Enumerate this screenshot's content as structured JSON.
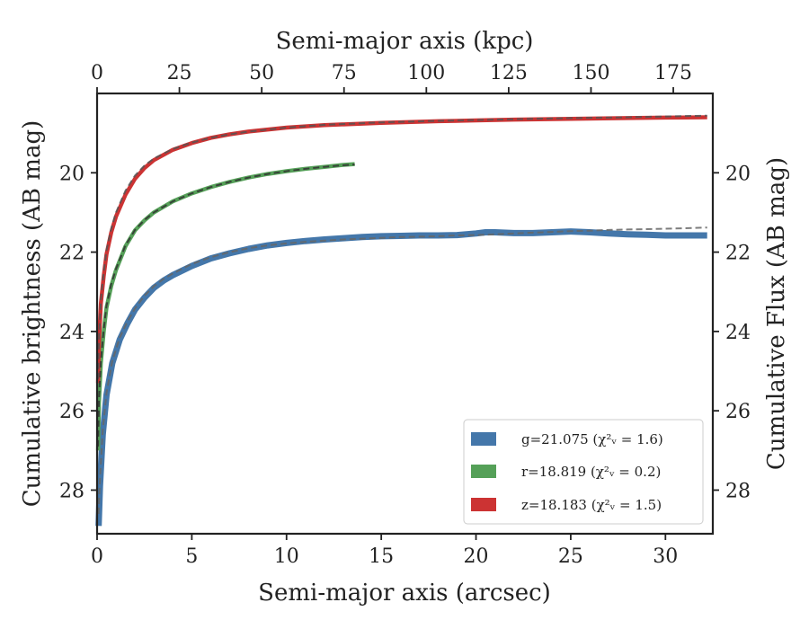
{
  "chart_data": {
    "type": "line",
    "xlabel": "Semi-major axis (arcsec)",
    "ylabel": "Cumulative brightness (AB mag)",
    "x2label": "Semi-major axis (kpc)",
    "y2label": "Cumulative Flux (AB mag)",
    "xlim": [
      0,
      32.5
    ],
    "ylim": [
      29.1,
      18.0
    ],
    "x2lim": [
      0,
      187
    ],
    "y_inverted": true,
    "xticks": [
      0,
      5,
      10,
      15,
      20,
      25,
      30
    ],
    "yticks": [
      20,
      22,
      24,
      26,
      28
    ],
    "x2ticks": [
      0,
      25,
      50,
      75,
      100,
      125,
      150,
      175
    ],
    "grid": false,
    "legend_position": "lower-right",
    "series": [
      {
        "name": "g=21.075 (χ²ᵥ = 1.6)",
        "color": "#4477aa",
        "fit_color": "#666666",
        "x": [
          0.08,
          0.15,
          0.3,
          0.5,
          0.8,
          1.2,
          1.6,
          2.0,
          2.5,
          3.0,
          3.5,
          4.0,
          5.0,
          6.0,
          7.0,
          8.0,
          9.0,
          10.0,
          11.0,
          12.0,
          13.0,
          14.0,
          15.0,
          16.0,
          17.0,
          18.0,
          19.0,
          20.0,
          20.5,
          21.0,
          22.0,
          23.0,
          24.0,
          25.0,
          26.0,
          27.0,
          28.0,
          29.0,
          30.0,
          31.0,
          32.2
        ],
        "y": [
          28.9,
          27.9,
          26.6,
          25.6,
          24.8,
          24.2,
          23.8,
          23.45,
          23.15,
          22.9,
          22.72,
          22.58,
          22.35,
          22.16,
          22.03,
          21.92,
          21.83,
          21.77,
          21.72,
          21.68,
          21.65,
          21.62,
          21.6,
          21.59,
          21.58,
          21.58,
          21.57,
          21.53,
          21.5,
          21.5,
          21.52,
          21.52,
          21.5,
          21.48,
          21.5,
          21.53,
          21.55,
          21.56,
          21.58,
          21.58,
          21.58
        ],
        "fit_y": [
          28.6,
          27.7,
          26.5,
          25.55,
          24.75,
          24.15,
          23.75,
          23.42,
          23.1,
          22.86,
          22.68,
          22.54,
          22.3,
          22.13,
          22.0,
          21.9,
          21.83,
          21.78,
          21.74,
          21.71,
          21.68,
          21.66,
          21.64,
          21.62,
          21.61,
          21.6,
          21.58,
          21.57,
          21.56,
          21.55,
          21.53,
          21.51,
          21.49,
          21.47,
          21.46,
          21.44,
          21.43,
          21.42,
          21.41,
          21.4,
          21.38
        ]
      },
      {
        "name": "r=18.819 (χ²ᵥ = 0.2)",
        "color": "#55a058",
        "fit_color": "#333333",
        "x": [
          0.05,
          0.1,
          0.2,
          0.35,
          0.5,
          0.75,
          1.0,
          1.5,
          2.0,
          2.5,
          3.0,
          4.0,
          5.0,
          6.0,
          7.0,
          8.0,
          9.0,
          10.0,
          11.0,
          12.0,
          13.0,
          13.6
        ],
        "y": [
          27.0,
          25.8,
          24.8,
          24.0,
          23.4,
          22.85,
          22.45,
          21.85,
          21.45,
          21.2,
          21.0,
          20.72,
          20.52,
          20.36,
          20.23,
          20.12,
          20.03,
          19.96,
          19.9,
          19.85,
          19.8,
          19.78
        ],
        "fit_y": [
          26.9,
          25.7,
          24.75,
          23.95,
          23.35,
          22.8,
          22.42,
          21.83,
          21.44,
          21.19,
          21.0,
          20.72,
          20.52,
          20.36,
          20.23,
          20.12,
          20.03,
          19.96,
          19.9,
          19.85,
          19.81,
          19.79
        ]
      },
      {
        "name": "z=18.183 (χ²ᵥ = 1.5)",
        "color": "#cc3333",
        "fit_color": "#555555",
        "x": [
          0.05,
          0.1,
          0.2,
          0.35,
          0.5,
          0.75,
          1.0,
          1.5,
          2.0,
          2.5,
          3.0,
          4.0,
          5.0,
          6.0,
          7.0,
          8.0,
          10.0,
          12.0,
          15.0,
          18.0,
          20.0,
          22.0,
          25.0,
          28.0,
          30.0,
          32.2
        ],
        "y": [
          25.3,
          24.3,
          23.3,
          22.6,
          22.05,
          21.5,
          21.1,
          20.55,
          20.15,
          19.88,
          19.68,
          19.42,
          19.25,
          19.12,
          19.03,
          18.96,
          18.86,
          18.8,
          18.74,
          18.7,
          18.68,
          18.66,
          18.64,
          18.62,
          18.61,
          18.6
        ],
        "fit_y": [
          25.2,
          24.2,
          23.2,
          22.5,
          21.95,
          21.4,
          21.0,
          20.45,
          20.07,
          19.82,
          19.64,
          19.4,
          19.24,
          19.12,
          19.03,
          18.96,
          18.86,
          18.79,
          18.73,
          18.69,
          18.67,
          18.65,
          18.62,
          18.6,
          18.58,
          18.56
        ]
      }
    ]
  }
}
